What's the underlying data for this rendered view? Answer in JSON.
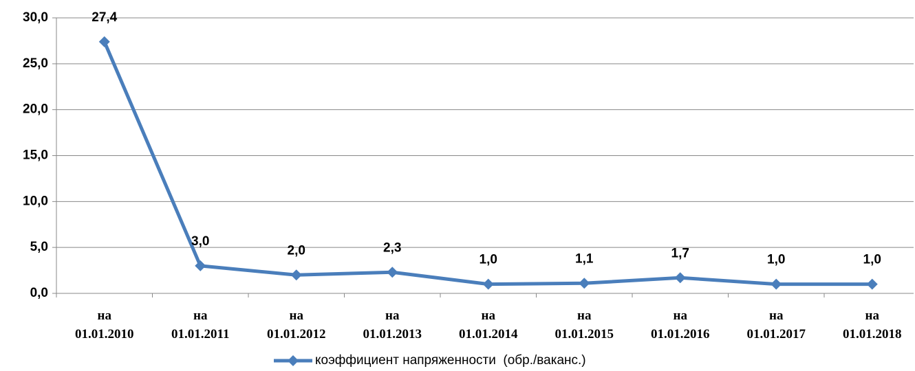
{
  "chart_data": {
    "type": "line",
    "categories": [
      "на\n01.01.2010",
      "на\n01.01.2011",
      "на\n01.01.2012",
      "на\n01.01.2013",
      "на\n01.01.2014",
      "на\n01.01.2015",
      "на\n01.01.2016",
      "на\n01.01.2017",
      "на\n01.01.2018"
    ],
    "series": [
      {
        "name": "коэффициент напряженности  (обр./ваканс.)",
        "color": "#4a7ebb",
        "values": [
          27.4,
          3.0,
          2.0,
          2.3,
          1.0,
          1.1,
          1.7,
          1.0,
          1.0
        ],
        "value_labels": [
          "27,4",
          "3,0",
          "2,0",
          "2,3",
          "1,0",
          "1,1",
          "1,7",
          "1,0",
          "1,0"
        ]
      }
    ],
    "ylim": [
      0,
      30
    ],
    "yticks": [
      {
        "value": 0,
        "label": "0,0"
      },
      {
        "value": 5,
        "label": "5,0"
      },
      {
        "value": 10,
        "label": "10,0"
      },
      {
        "value": 15,
        "label": "15,0"
      },
      {
        "value": 20,
        "label": "20,0"
      },
      {
        "value": 25,
        "label": "25,0"
      },
      {
        "value": 30,
        "label": "30,0"
      }
    ],
    "grid": true,
    "legend": "bottom"
  }
}
